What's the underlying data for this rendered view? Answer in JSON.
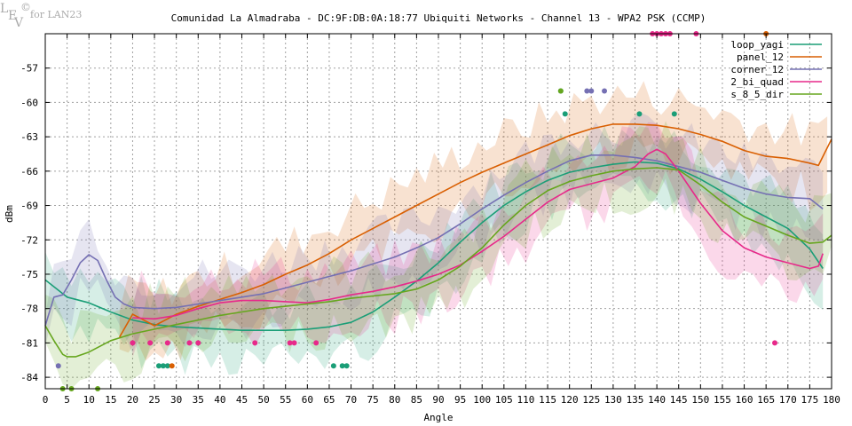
{
  "logo": {
    "l": "L",
    "e": "E",
    "v": "V",
    "symbol": "©",
    "text": "for LAN23"
  },
  "chart_data": {
    "type": "line",
    "title": "Comunidad La Almadraba - DC:9F:DB:0A:18:77 Ubiquiti Networks - Channel 13 - WPA2 PSK (CCMP)",
    "xlabel": "Angle",
    "ylabel": "dBm",
    "xlim": [
      0,
      180
    ],
    "ylim": [
      -85,
      -54
    ],
    "xticks": [
      0,
      5,
      10,
      15,
      20,
      25,
      30,
      35,
      40,
      45,
      50,
      55,
      60,
      65,
      70,
      75,
      80,
      85,
      90,
      95,
      100,
      105,
      110,
      115,
      120,
      125,
      130,
      135,
      140,
      145,
      150,
      155,
      160,
      165,
      170,
      175,
      180
    ],
    "yticks": [
      -84,
      -81,
      -78,
      -75,
      -72,
      -69,
      -66,
      -63,
      -60,
      -57
    ],
    "grid": true,
    "legend_position": "top-right",
    "series": [
      {
        "name": "loop_yagi",
        "color": "#1a9e77",
        "x": [
          0,
          5,
          10,
          15,
          20,
          25,
          30,
          35,
          40,
          45,
          50,
          55,
          60,
          65,
          70,
          75,
          80,
          85,
          90,
          95,
          100,
          105,
          110,
          115,
          120,
          125,
          130,
          135,
          140,
          145,
          150,
          155,
          160,
          165,
          170,
          175,
          178
        ],
        "y": [
          -75.5,
          -77,
          -77.5,
          -78.3,
          -79,
          -79.4,
          -79.6,
          -79.7,
          -79.8,
          -79.9,
          -79.9,
          -79.9,
          -79.8,
          -79.6,
          -79.2,
          -78.3,
          -77,
          -75.6,
          -74,
          -72.2,
          -70.5,
          -69,
          -67.8,
          -66.8,
          -66.1,
          -65.7,
          -65.4,
          -65.2,
          -65.3,
          -65.8,
          -66.7,
          -67.8,
          -69,
          -70,
          -71,
          -72.8,
          -74.5
        ],
        "outliers": [
          [
            26,
            -83
          ],
          [
            27,
            -83
          ],
          [
            28,
            -83
          ],
          [
            66,
            -83
          ],
          [
            68,
            -83
          ],
          [
            69,
            -83
          ],
          [
            119,
            -61
          ],
          [
            136,
            -61
          ],
          [
            144,
            -61
          ],
          [
            118,
            -59
          ]
        ]
      },
      {
        "name": "panel_12",
        "color": "#d95f02",
        "x": [
          17,
          20,
          25,
          30,
          35,
          40,
          45,
          50,
          55,
          60,
          65,
          70,
          75,
          80,
          85,
          90,
          95,
          100,
          105,
          110,
          115,
          120,
          125,
          130,
          135,
          140,
          145,
          150,
          155,
          160,
          165,
          170,
          175,
          177,
          180
        ],
        "y": [
          -80.5,
          -78.5,
          -79.5,
          -78.5,
          -77.8,
          -77.2,
          -76.6,
          -75.9,
          -75,
          -74.2,
          -73.2,
          -72,
          -71,
          -70,
          -69,
          -68,
          -67,
          -66.1,
          -65.3,
          -64.5,
          -63.7,
          -62.9,
          -62.3,
          -61.9,
          -61.9,
          -62,
          -62.3,
          -62.8,
          -63.4,
          -64.2,
          -64.7,
          -64.9,
          -65.3,
          -65.5,
          -63.2
        ],
        "outliers": [
          [
            29,
            -83
          ],
          [
            165,
            -54
          ]
        ]
      },
      {
        "name": "corner_12",
        "color": "#7570b3",
        "x": [
          0,
          2,
          4,
          6,
          8,
          10,
          12,
          14,
          16,
          18,
          20,
          25,
          30,
          35,
          40,
          45,
          50,
          55,
          60,
          65,
          70,
          75,
          80,
          85,
          90,
          95,
          100,
          105,
          110,
          115,
          120,
          125,
          130,
          135,
          140,
          145,
          150,
          155,
          160,
          165,
          170,
          175,
          178
        ],
        "y": [
          -79.5,
          -77,
          -76.8,
          -75.5,
          -74,
          -73.3,
          -73.8,
          -75.5,
          -77,
          -77.6,
          -77.9,
          -78,
          -77.9,
          -77.6,
          -77.3,
          -77,
          -76.7,
          -76.2,
          -75.7,
          -75.2,
          -74.7,
          -74.1,
          -73.5,
          -72.7,
          -71.8,
          -70.6,
          -69.3,
          -68.1,
          -67,
          -66,
          -65.1,
          -64.6,
          -64.6,
          -64.8,
          -65.1,
          -65.6,
          -66.1,
          -66.8,
          -67.5,
          -68,
          -68.3,
          -68.4,
          -69.3
        ],
        "outliers": [
          [
            3,
            -83
          ],
          [
            124,
            -59
          ],
          [
            125,
            -59
          ],
          [
            128,
            -59
          ]
        ]
      },
      {
        "name": "2_bi_quad",
        "color": "#e7298a",
        "x": [
          20,
          25,
          30,
          35,
          40,
          45,
          50,
          55,
          60,
          65,
          70,
          75,
          80,
          85,
          90,
          95,
          100,
          105,
          110,
          115,
          120,
          125,
          130,
          135,
          138,
          140,
          142,
          145,
          150,
          155,
          160,
          165,
          170,
          175,
          177,
          178
        ],
        "y": [
          -78.8,
          -78.9,
          -78.6,
          -78,
          -77.5,
          -77.3,
          -77.3,
          -77.4,
          -77.5,
          -77.2,
          -76.8,
          -76.5,
          -76.1,
          -75.6,
          -75,
          -74.2,
          -73,
          -71.7,
          -70.2,
          -68.7,
          -67.6,
          -67.1,
          -66.6,
          -65.6,
          -64.5,
          -64.1,
          -64.5,
          -66,
          -68.8,
          -71.2,
          -72.7,
          -73.5,
          -74,
          -74.5,
          -74.3,
          -73.2
        ],
        "outliers": [
          [
            20,
            -81
          ],
          [
            24,
            -81
          ],
          [
            28,
            -81
          ],
          [
            33,
            -81
          ],
          [
            35,
            -81
          ],
          [
            48,
            -81
          ],
          [
            56,
            -81
          ],
          [
            57,
            -81
          ],
          [
            62,
            -81
          ],
          [
            167,
            -81
          ],
          [
            139,
            -54
          ],
          [
            140,
            -54
          ],
          [
            141,
            -54
          ],
          [
            142,
            -54
          ],
          [
            143,
            -54
          ],
          [
            149,
            -54
          ]
        ]
      },
      {
        "name": "s_8_5_dir",
        "color": "#66a61e",
        "x": [
          0,
          2,
          4,
          5,
          7,
          10,
          15,
          20,
          25,
          30,
          35,
          40,
          45,
          50,
          55,
          60,
          65,
          70,
          75,
          80,
          85,
          90,
          95,
          100,
          105,
          110,
          115,
          120,
          125,
          130,
          135,
          140,
          145,
          150,
          155,
          160,
          165,
          170,
          175,
          178,
          180
        ],
        "y": [
          -79.5,
          -80.8,
          -82,
          -82.2,
          -82.2,
          -81.8,
          -80.8,
          -80.2,
          -79.8,
          -79.4,
          -79,
          -78.6,
          -78.3,
          -78,
          -77.8,
          -77.6,
          -77.4,
          -77.1,
          -76.9,
          -76.7,
          -76.3,
          -75.5,
          -74.3,
          -72.7,
          -70.7,
          -69,
          -67.7,
          -66.9,
          -66.4,
          -66,
          -65.8,
          -65.7,
          -65.9,
          -67.2,
          -68.7,
          -70,
          -70.8,
          -71.6,
          -72.3,
          -72.2,
          -71.6
        ],
        "outliers": [
          [
            4,
            -85
          ],
          [
            6,
            -85
          ],
          [
            12,
            -85
          ],
          [
            118,
            -59
          ]
        ]
      }
    ]
  }
}
